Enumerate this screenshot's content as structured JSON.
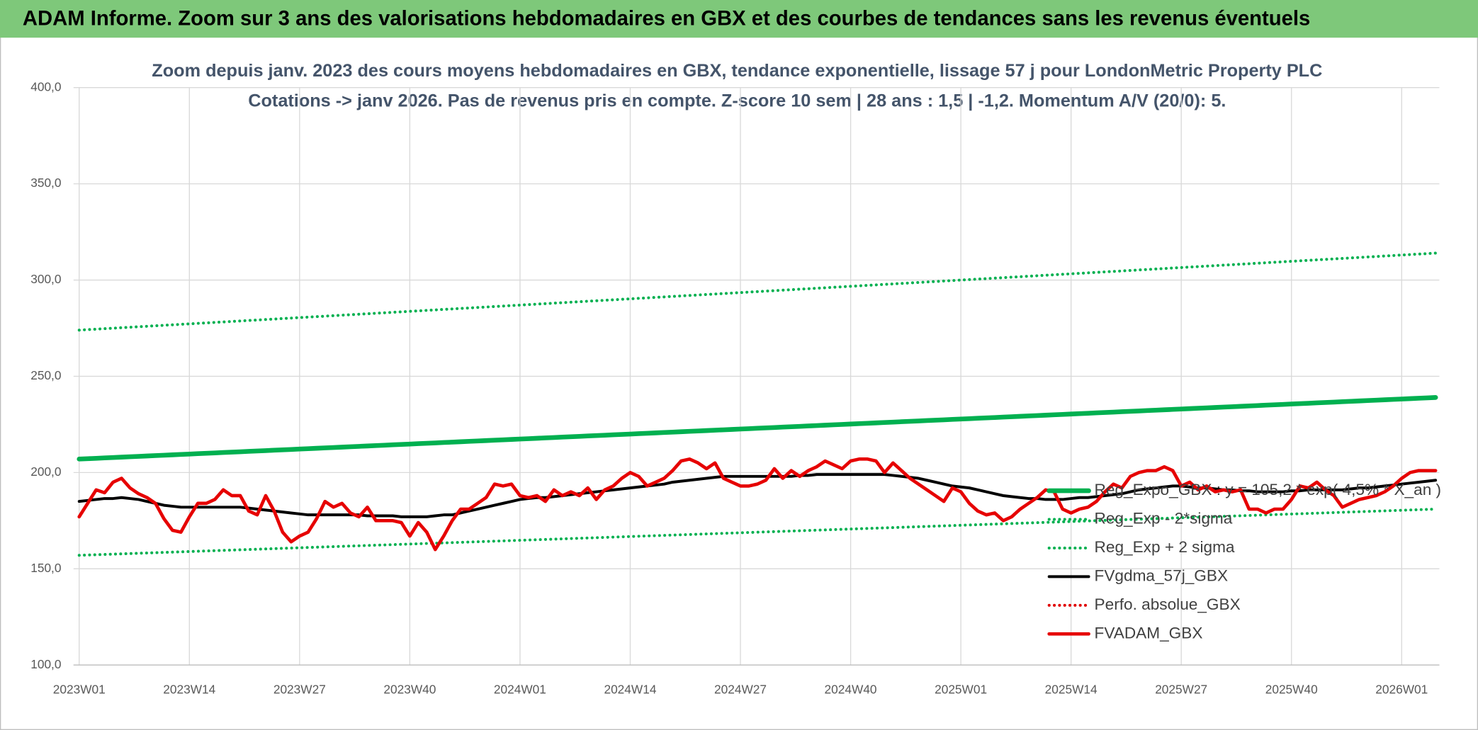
{
  "header": {
    "title": "ADAM Informe. Zoom sur 3 ans des valorisations hebdomadaires en GBX et des courbes de tendances sans les revenus éventuels"
  },
  "chart_data": {
    "type": "line",
    "title_lines": [
      "Zoom depuis janv. 2023 des cours moyens hebdomadaires en GBX, tendance exponentielle, lissage 57 j pour LondonMetric Property PLC",
      "Cotations -> janv 2026. Pas de revenus pris en compte. Z-score 10 sem | 28 ans : 1,5 | -1,2. Momentum A/V (20/0): 5."
    ],
    "categories": [
      "2023W01",
      null,
      null,
      null,
      null,
      null,
      null,
      null,
      null,
      null,
      null,
      null,
      null,
      "2023W14",
      null,
      null,
      null,
      null,
      null,
      null,
      null,
      null,
      null,
      null,
      null,
      null,
      "2023W27",
      null,
      null,
      null,
      null,
      null,
      null,
      null,
      null,
      null,
      null,
      null,
      null,
      "2023W40",
      null,
      null,
      null,
      null,
      null,
      null,
      null,
      null,
      null,
      null,
      null,
      null,
      "2024W01",
      null,
      null,
      null,
      null,
      null,
      null,
      null,
      null,
      null,
      null,
      null,
      null,
      "2024W14",
      null,
      null,
      null,
      null,
      null,
      null,
      null,
      null,
      null,
      null,
      null,
      null,
      "2024W27",
      null,
      null,
      null,
      null,
      null,
      null,
      null,
      null,
      null,
      null,
      null,
      null,
      "2024W40",
      null,
      null,
      null,
      null,
      null,
      null,
      null,
      null,
      null,
      null,
      null,
      null,
      "2025W01",
      null,
      null,
      null,
      null,
      null,
      null,
      null,
      null,
      null,
      null,
      null,
      null,
      "2025W14",
      null,
      null,
      null,
      null,
      null,
      null,
      null,
      null,
      null,
      null,
      null,
      null,
      "2025W27",
      null,
      null,
      null,
      null,
      null,
      null,
      null,
      null,
      null,
      null,
      null,
      null,
      "2025W40",
      null,
      null,
      null,
      null,
      null,
      null,
      null,
      null,
      null,
      null,
      null,
      null,
      "2026W01",
      null,
      null,
      null,
      null
    ],
    "ylim": [
      100,
      400
    ],
    "yticks": [
      {
        "value": 100,
        "label": "100,0"
      },
      {
        "value": 150,
        "label": "150,0"
      },
      {
        "value": 200,
        "label": "200,0"
      },
      {
        "value": 250,
        "label": "250,0"
      },
      {
        "value": 300,
        "label": "300,0"
      },
      {
        "value": 350,
        "label": "350,0"
      },
      {
        "value": 400,
        "label": "400,0"
      }
    ],
    "grid": true,
    "series": [
      {
        "name": "Reg_Expo_GBX : y = 105,2 * exp( 4,5% * X_an )",
        "color": "#00b050",
        "dash": "solid",
        "line_width": 5,
        "values": [
          207,
          207.2,
          207.4,
          207.6,
          207.8,
          208,
          208.2,
          208.4,
          208.6,
          208.8,
          209,
          209.2,
          209.4,
          209.6,
          209.8,
          210,
          210.2,
          210.4,
          210.6,
          210.8,
          211,
          211.2,
          211.4,
          211.6,
          211.8,
          212,
          212.2,
          212.4,
          212.6,
          212.8,
          213,
          213.2,
          213.4,
          213.6,
          213.8,
          214,
          214.2,
          214.4,
          214.6,
          214.8,
          215,
          215.2,
          215.4,
          215.6,
          215.8,
          216,
          216.2,
          216.4,
          216.6,
          216.8,
          217,
          217.2,
          217.4,
          217.6,
          217.8,
          218,
          218.2,
          218.4,
          218.6,
          218.8,
          219,
          219.2,
          219.4,
          219.6,
          219.8,
          220,
          220.2,
          220.4,
          220.6,
          220.8,
          221,
          221.2,
          221.4,
          221.6,
          221.8,
          222,
          222.2,
          222.4,
          222.6,
          222.8,
          223,
          223.2,
          223.4,
          223.6,
          223.8,
          224,
          224.2,
          224.4,
          224.6,
          224.8,
          225,
          225.2,
          225.4,
          225.6,
          225.8,
          226,
          226.2,
          226.4,
          226.6,
          226.8,
          227,
          227.2,
          227.4,
          227.6,
          227.8,
          228,
          228.2,
          228.4,
          228.6,
          228.8,
          229,
          229.2,
          229.4,
          229.6,
          229.8,
          230,
          230.2,
          230.4,
          230.6,
          230.8,
          231,
          231.2,
          231.4,
          231.6,
          231.8,
          232,
          232.2,
          232.4,
          232.6,
          232.8,
          233,
          233.2,
          233.4,
          233.6,
          233.8,
          234,
          234.2,
          234.4,
          234.6,
          234.8,
          235,
          235.2,
          235.4,
          235.6,
          235.8,
          236,
          236.2,
          236.4,
          236.6,
          236.8,
          237,
          237.2,
          237.4,
          237.6,
          237.8,
          238,
          238.2,
          238.4,
          238.6,
          238.8,
          239
        ]
      },
      {
        "name": "Reg_Exp - 2*sigma",
        "color": "#00b050",
        "dash": "dotted",
        "line_width": 3,
        "values": [
          157,
          157.15,
          157.3,
          157.45,
          157.6,
          157.75,
          157.9,
          158.05,
          158.2,
          158.35,
          158.5,
          158.65,
          158.8,
          158.95,
          159.1,
          159.25,
          159.4,
          159.55,
          159.7,
          159.85,
          160,
          160.15,
          160.3,
          160.45,
          160.6,
          160.75,
          160.9,
          161.05,
          161.2,
          161.35,
          161.5,
          161.65,
          161.8,
          161.95,
          162.1,
          162.25,
          162.4,
          162.55,
          162.7,
          162.85,
          163,
          163.15,
          163.3,
          163.45,
          163.6,
          163.75,
          163.9,
          164.05,
          164.2,
          164.35,
          164.5,
          164.65,
          164.8,
          164.95,
          165.1,
          165.25,
          165.4,
          165.55,
          165.7,
          165.85,
          166,
          166.15,
          166.3,
          166.45,
          166.6,
          166.75,
          166.9,
          167.05,
          167.2,
          167.35,
          167.5,
          167.65,
          167.8,
          167.95,
          168.1,
          168.25,
          168.4,
          168.55,
          168.7,
          168.85,
          169,
          169.15,
          169.3,
          169.45,
          169.6,
          169.75,
          169.9,
          170.05,
          170.2,
          170.35,
          170.5,
          170.65,
          170.8,
          170.95,
          171.1,
          171.25,
          171.4,
          171.55,
          171.7,
          171.85,
          172,
          172.15,
          172.3,
          172.45,
          172.6,
          172.75,
          172.9,
          173.05,
          173.2,
          173.35,
          173.5,
          173.65,
          173.8,
          173.95,
          174.1,
          174.25,
          174.4,
          174.55,
          174.7,
          174.85,
          175,
          175.15,
          175.3,
          175.45,
          175.6,
          175.75,
          175.9,
          176.05,
          176.2,
          176.35,
          176.5,
          176.65,
          176.8,
          176.95,
          177.1,
          177.25,
          177.4,
          177.55,
          177.7,
          177.85,
          178,
          178.15,
          178.3,
          178.45,
          178.6,
          178.75,
          178.9,
          179.05,
          179.2,
          179.35,
          179.5,
          179.65,
          179.8,
          179.95,
          180.1,
          180.25,
          180.4,
          180.55,
          180.7,
          180.85,
          181
        ]
      },
      {
        "name": "Reg_Exp + 2 sigma",
        "color": "#00b050",
        "dash": "dotted",
        "line_width": 3,
        "values": [
          274,
          274.25,
          274.5,
          274.75,
          275,
          275.25,
          275.5,
          275.75,
          276,
          276.25,
          276.5,
          276.75,
          277,
          277.25,
          277.5,
          277.75,
          278,
          278.25,
          278.5,
          278.75,
          279,
          279.25,
          279.5,
          279.75,
          280,
          280.25,
          280.5,
          280.75,
          281,
          281.25,
          281.5,
          281.75,
          282,
          282.25,
          282.5,
          282.75,
          283,
          283.25,
          283.5,
          283.75,
          284,
          284.25,
          284.5,
          284.75,
          285,
          285.25,
          285.5,
          285.75,
          286,
          286.25,
          286.5,
          286.75,
          287,
          287.25,
          287.5,
          287.75,
          288,
          288.25,
          288.5,
          288.75,
          289,
          289.25,
          289.5,
          289.75,
          290,
          290.25,
          290.5,
          290.75,
          291,
          291.25,
          291.5,
          291.75,
          292,
          292.25,
          292.5,
          292.75,
          293,
          293.25,
          293.5,
          293.75,
          294,
          294.25,
          294.5,
          294.75,
          295,
          295.25,
          295.5,
          295.75,
          296,
          296.25,
          296.5,
          296.75,
          297,
          297.25,
          297.5,
          297.75,
          298,
          298.25,
          298.5,
          298.75,
          299,
          299.25,
          299.5,
          299.75,
          300,
          300.25,
          300.5,
          300.75,
          301,
          301.25,
          301.5,
          301.75,
          302,
          302.25,
          302.5,
          302.75,
          303,
          303.25,
          303.5,
          303.75,
          304,
          304.25,
          304.5,
          304.75,
          305,
          305.25,
          305.5,
          305.75,
          306,
          306.25,
          306.5,
          306.75,
          307,
          307.25,
          307.5,
          307.75,
          308,
          308.25,
          308.5,
          308.75,
          309,
          309.25,
          309.5,
          309.75,
          310,
          310.25,
          310.5,
          310.75,
          311,
          311.25,
          311.5,
          311.75,
          312,
          312.25,
          312.5,
          312.75,
          313,
          313.25,
          313.5,
          313.75,
          314
        ]
      },
      {
        "name": "FVgdma_57j_GBX",
        "color": "#000000",
        "dash": "solid",
        "line_width": 3,
        "values": [
          185,
          185.5,
          186,
          186.5,
          186.5,
          187,
          186.5,
          186,
          185,
          184,
          183,
          182.5,
          182,
          182,
          182,
          182,
          182,
          182,
          182,
          182,
          181.5,
          181,
          180.5,
          180,
          179.5,
          179,
          178.5,
          178,
          178,
          178,
          178,
          178,
          178,
          178,
          177.5,
          177.5,
          177.5,
          177.5,
          177,
          177,
          177,
          177,
          177.5,
          178,
          178,
          179,
          180,
          181,
          182,
          183,
          184,
          185,
          186,
          186.5,
          187,
          187,
          187.5,
          188,
          188.5,
          189,
          189.5,
          190,
          190.5,
          191,
          191.5,
          192,
          192.5,
          193,
          193.5,
          194,
          195,
          195.5,
          196,
          196.5,
          197,
          197.5,
          198,
          198,
          198,
          198,
          198,
          198,
          198,
          198,
          198,
          198.5,
          198.5,
          199,
          199,
          199,
          199,
          199,
          199,
          199,
          199,
          199,
          198.5,
          198,
          197.5,
          197,
          196,
          195,
          194,
          193,
          192.5,
          192,
          191,
          190,
          189,
          188,
          187.5,
          187,
          186.5,
          186.5,
          186,
          186,
          186,
          186.5,
          187,
          187,
          187.5,
          188,
          188.5,
          189,
          190,
          191,
          191.5,
          192,
          192.5,
          193,
          193,
          192.5,
          192,
          192,
          191.5,
          191,
          191,
          190.5,
          190.5,
          190,
          190,
          190,
          190,
          190.5,
          190.5,
          191,
          191,
          191,
          191,
          191,
          191.5,
          192,
          192,
          192.5,
          193,
          193.5,
          194,
          194.5,
          195,
          195.5,
          196
        ]
      },
      {
        "name": "Perfo. absolue_GBX",
        "color": "#e00000",
        "dash": "dotted",
        "line_width": 3,
        "values": [
          177,
          184,
          191,
          189.5,
          195,
          197,
          192,
          189,
          187,
          184,
          176,
          170,
          169,
          177,
          184,
          184,
          186,
          191,
          188,
          188,
          180,
          178,
          188,
          180,
          169,
          164,
          167,
          169,
          176,
          185,
          182,
          184,
          179,
          177,
          182,
          175,
          175,
          175,
          174,
          167,
          174,
          169,
          160,
          167,
          175,
          181,
          181,
          184,
          187,
          194,
          193,
          194,
          188,
          187,
          188,
          185,
          191,
          188,
          190,
          188,
          192,
          186,
          191,
          193,
          197,
          200,
          198,
          193,
          195,
          197,
          201,
          206,
          207,
          205,
          202,
          205,
          197,
          195,
          193,
          193,
          194,
          196,
          202,
          197,
          201,
          198,
          201,
          203,
          206,
          204,
          202,
          206,
          207,
          207,
          206,
          200,
          205,
          201,
          197,
          194,
          191,
          188,
          185,
          192,
          190,
          184,
          180,
          178,
          179,
          175,
          177,
          181,
          184,
          187,
          191,
          190,
          181,
          179,
          181,
          182,
          185,
          190,
          194,
          192,
          198,
          200,
          201,
          201,
          203,
          201,
          193,
          195,
          191,
          193,
          190,
          191,
          190,
          191,
          181,
          181,
          179,
          181,
          181,
          186,
          193,
          192,
          195,
          191,
          188,
          182,
          184,
          186,
          187,
          188,
          190,
          193,
          197,
          200,
          201,
          201,
          201
        ]
      },
      {
        "name": "FVADAM_GBX",
        "color": "#e60000",
        "dash": "solid",
        "line_width": 3.5,
        "values": [
          177,
          184,
          191,
          189.5,
          195,
          197,
          192,
          189,
          187,
          184,
          176,
          170,
          169,
          177,
          184,
          184,
          186,
          191,
          188,
          188,
          180,
          178,
          188,
          180,
          169,
          164,
          167,
          169,
          176,
          185,
          182,
          184,
          179,
          177,
          182,
          175,
          175,
          175,
          174,
          167,
          174,
          169,
          160,
          167,
          175,
          181,
          181,
          184,
          187,
          194,
          193,
          194,
          188,
          187,
          188,
          185,
          191,
          188,
          190,
          188,
          192,
          186,
          191,
          193,
          197,
          200,
          198,
          193,
          195,
          197,
          201,
          206,
          207,
          205,
          202,
          205,
          197,
          195,
          193,
          193,
          194,
          196,
          202,
          197,
          201,
          198,
          201,
          203,
          206,
          204,
          202,
          206,
          207,
          207,
          206,
          200,
          205,
          201,
          197,
          194,
          191,
          188,
          185,
          192,
          190,
          184,
          180,
          178,
          179,
          175,
          177,
          181,
          184,
          187,
          191,
          190,
          181,
          179,
          181,
          182,
          185,
          190,
          194,
          192,
          198,
          200,
          201,
          201,
          203,
          201,
          193,
          195,
          191,
          193,
          190,
          191,
          190,
          191,
          181,
          181,
          179,
          181,
          181,
          186,
          193,
          192,
          195,
          191,
          188,
          182,
          184,
          186,
          187,
          188,
          190,
          193,
          197,
          200,
          201,
          201,
          201
        ]
      }
    ]
  }
}
